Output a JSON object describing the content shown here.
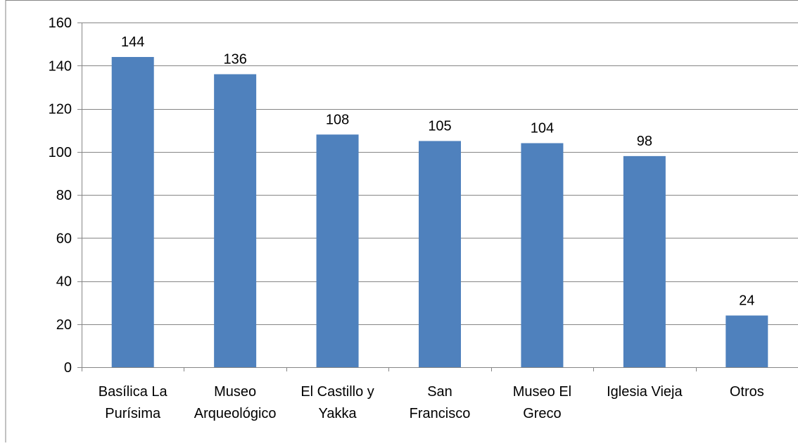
{
  "chart_data": {
    "type": "bar",
    "title": "",
    "xlabel": "",
    "ylabel": "",
    "categories": [
      [
        "Basílica La",
        "Purísima"
      ],
      [
        "Museo",
        "Arqueológico"
      ],
      [
        "El Castillo y",
        "Yakka"
      ],
      [
        "San",
        "Francisco"
      ],
      [
        "Museo El",
        "Greco"
      ],
      [
        "Iglesia Vieja"
      ],
      [
        "Otros"
      ]
    ],
    "values": [
      144,
      136,
      108,
      105,
      104,
      98,
      24
    ],
    "data_labels": [
      "144",
      "136",
      "108",
      "105",
      "104",
      "98",
      "24"
    ],
    "ylim": [
      0,
      160
    ],
    "yticks": [
      0,
      20,
      40,
      60,
      80,
      100,
      120,
      140,
      160
    ],
    "grid": true,
    "legend": "none",
    "colors": {
      "bar": "#4f81bd",
      "grid": "#868686",
      "axis": "#868686",
      "frame": "#868686"
    }
  }
}
